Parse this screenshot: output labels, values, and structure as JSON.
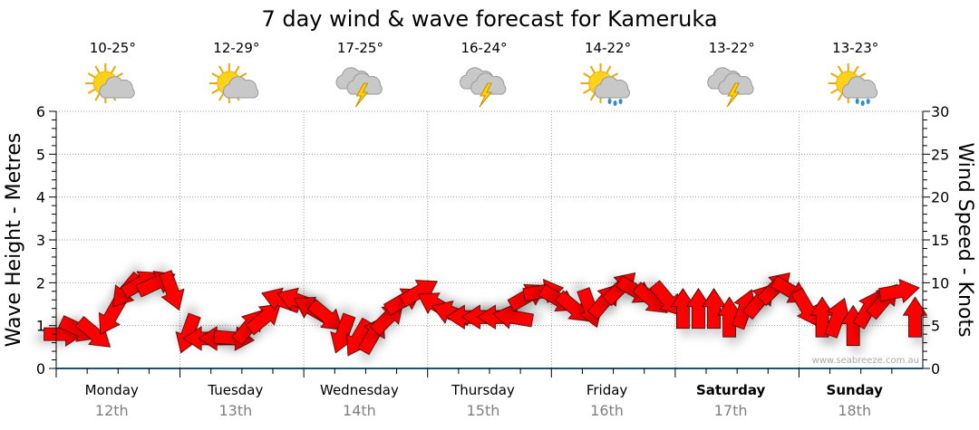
{
  "chart_data": {
    "type": "scatter",
    "title": "7 day wind & wave forecast for Kameruka",
    "ylabel_left": "Wave Height - Metres",
    "ylabel_right": "Wind Speed - Knots",
    "ylim_left": [
      0,
      6
    ],
    "ylim_right": [
      0,
      30
    ],
    "yticks_left": [
      "0",
      "1",
      "2",
      "3",
      "4",
      "5",
      "6"
    ],
    "yticks_right": [
      "0",
      "5",
      "10",
      "15",
      "20",
      "25",
      "30"
    ],
    "grid": true,
    "watermark": "www.seabreeze.com.au",
    "days": [
      {
        "name": "Monday",
        "date": "12th",
        "temp": "10-25°",
        "icon": "partly-cloudy",
        "bold": false
      },
      {
        "name": "Tuesday",
        "date": "13th",
        "temp": "12-29°",
        "icon": "partly-cloudy",
        "bold": false
      },
      {
        "name": "Wednesday",
        "date": "14th",
        "temp": "17-25°",
        "icon": "thunderstorm",
        "bold": false
      },
      {
        "name": "Thursday",
        "date": "15th",
        "temp": "16-24°",
        "icon": "thunderstorm",
        "bold": false
      },
      {
        "name": "Friday",
        "date": "16th",
        "temp": "14-22°",
        "icon": "showers",
        "bold": false
      },
      {
        "name": "Saturday",
        "date": "17th",
        "temp": "13-22°",
        "icon": "thunderstorm",
        "bold": true
      },
      {
        "name": "Sunday",
        "date": "18th",
        "temp": "13-23°",
        "icon": "showers",
        "bold": true
      }
    ],
    "wave_height_m": [
      0,
      0,
      0,
      0,
      0,
      0,
      0
    ],
    "wind_series": {
      "name": "Wind (knots, direction degrees arrow points)",
      "points_per_day": 8,
      "values": [
        [
          4,
          90
        ],
        [
          4.5,
          115
        ],
        [
          4,
          130
        ],
        [
          6,
          210
        ],
        [
          9,
          220
        ],
        [
          10,
          60
        ],
        [
          10,
          65
        ],
        [
          9,
          160
        ],
        [
          4,
          200
        ],
        [
          3.5,
          270
        ],
        [
          3.5,
          270
        ],
        [
          3.5,
          95
        ],
        [
          5,
          40
        ],
        [
          6,
          50
        ],
        [
          8,
          290
        ],
        [
          8,
          290
        ],
        [
          7,
          300
        ],
        [
          6,
          130
        ],
        [
          4,
          200
        ],
        [
          3.5,
          210
        ],
        [
          4,
          30
        ],
        [
          6,
          45
        ],
        [
          8,
          60
        ],
        [
          9,
          60
        ],
        [
          7.5,
          300
        ],
        [
          6.5,
          290
        ],
        [
          6,
          270
        ],
        [
          6,
          270
        ],
        [
          6,
          270
        ],
        [
          6,
          280
        ],
        [
          8.5,
          60
        ],
        [
          9,
          80
        ],
        [
          8,
          120
        ],
        [
          7,
          130
        ],
        [
          7,
          160
        ],
        [
          8,
          40
        ],
        [
          9.5,
          45
        ],
        [
          9,
          120
        ],
        [
          8,
          130
        ],
        [
          8,
          140
        ],
        [
          7,
          0
        ],
        [
          7,
          0
        ],
        [
          7,
          0
        ],
        [
          6,
          0
        ],
        [
          7,
          20
        ],
        [
          8,
          40
        ],
        [
          9.5,
          45
        ],
        [
          9,
          120
        ],
        [
          7,
          150
        ],
        [
          6,
          0
        ],
        [
          6,
          20
        ],
        [
          5,
          0
        ],
        [
          7,
          30
        ],
        [
          8,
          40
        ],
        [
          9,
          80
        ],
        [
          6,
          0
        ]
      ]
    },
    "colors": {
      "arrow": "#ff0000",
      "arrow_stroke": "#3a0000",
      "axis": "#000000",
      "wave_line": "#1f4e79",
      "date": "#808080",
      "grid": "#999999"
    }
  }
}
